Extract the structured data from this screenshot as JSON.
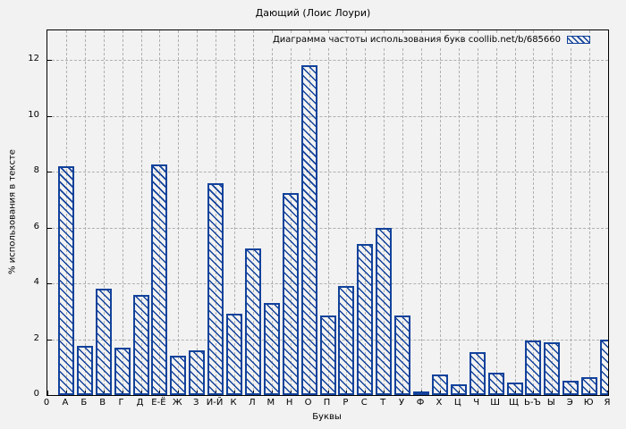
{
  "chart_data": {
    "type": "bar",
    "title": "Дающий (Лоис Лоури)",
    "legend_label": "Диаграмма частоты использования букв coollib.net/b/685660",
    "xlabel": "Буквы",
    "ylabel": "% использования в тексте",
    "categories": [
      "0",
      "А",
      "Б",
      "В",
      "Г",
      "Д",
      "Е-Ё",
      "Ж",
      "З",
      "И-Й",
      "К",
      "Л",
      "М",
      "Н",
      "О",
      "П",
      "Р",
      "С",
      "Т",
      "У",
      "Ф",
      "Х",
      "Ц",
      "Ч",
      "Ш",
      "Щ",
      "Ь-Ъ",
      "Ы",
      "Э",
      "Ю",
      "Я"
    ],
    "values": [
      0,
      8.2,
      1.75,
      3.8,
      1.7,
      3.6,
      8.25,
      1.4,
      1.6,
      7.6,
      2.9,
      5.25,
      3.3,
      7.25,
      11.8,
      2.85,
      3.9,
      5.4,
      6.0,
      2.85,
      0.1,
      0.75,
      0.4,
      1.55,
      0.8,
      0.45,
      1.95,
      1.9,
      0.5,
      0.65,
      2.0
    ],
    "yticks": [
      0,
      2,
      4,
      6,
      8,
      10,
      12
    ],
    "ylim": [
      0,
      13.06
    ],
    "grid": "dashed both axes",
    "legend_position": "top-right inside plot",
    "hatch": "diagonal-backslash",
    "colors": {
      "bar": "#12429b",
      "background": "#f2f2f2",
      "grid": "#b0b0b0",
      "axis": "#000000"
    }
  }
}
